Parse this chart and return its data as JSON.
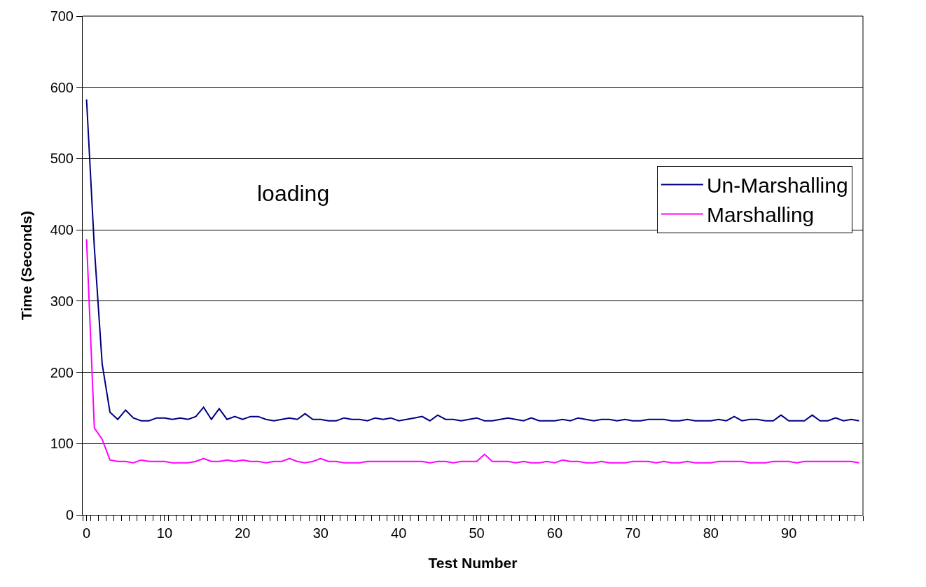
{
  "chart_data": {
    "type": "line",
    "xlabel": "Test Number",
    "ylabel": "Time (Seconds)",
    "annotations": [
      "loading"
    ],
    "x": [
      0,
      1,
      2,
      3,
      4,
      5,
      6,
      7,
      8,
      9,
      10,
      11,
      12,
      13,
      14,
      15,
      16,
      17,
      18,
      19,
      20,
      21,
      22,
      23,
      24,
      25,
      26,
      27,
      28,
      29,
      30,
      31,
      32,
      33,
      34,
      35,
      36,
      37,
      38,
      39,
      40,
      41,
      42,
      43,
      44,
      45,
      46,
      47,
      48,
      49,
      50,
      51,
      52,
      53,
      54,
      55,
      56,
      57,
      58,
      59,
      60,
      61,
      62,
      63,
      64,
      65,
      66,
      67,
      68,
      69,
      70,
      71,
      72,
      73,
      74,
      75,
      76,
      77,
      78,
      79,
      80,
      81,
      82,
      83,
      84,
      85,
      86,
      87,
      88,
      89,
      90,
      91,
      92,
      93,
      94,
      95,
      96,
      97,
      98,
      99
    ],
    "series": [
      {
        "name": "Un-Marshalling",
        "color": "#000080",
        "values": [
          583,
          375,
          212,
          144,
          134,
          147,
          136,
          132,
          132,
          136,
          136,
          134,
          136,
          134,
          138,
          151,
          134,
          149,
          134,
          138,
          134,
          138,
          138,
          134,
          132,
          134,
          136,
          134,
          142,
          134,
          134,
          132,
          132,
          136,
          134,
          134,
          132,
          136,
          134,
          136,
          132,
          134,
          136,
          138,
          132,
          140,
          134,
          134,
          132,
          134,
          136,
          132,
          132,
          134,
          136,
          134,
          132,
          136,
          132,
          132,
          132,
          134,
          132,
          136,
          134,
          132,
          134,
          134,
          132,
          134,
          132,
          132,
          134,
          134,
          134,
          132,
          132,
          134,
          132,
          132,
          132,
          134,
          132,
          138,
          132,
          134,
          134,
          132,
          132,
          140,
          132,
          132,
          132,
          140,
          132,
          132,
          136,
          132,
          134,
          132
        ]
      },
      {
        "name": "Marshalling",
        "color": "#ff00ff",
        "values": [
          387,
          122,
          106,
          77,
          75,
          75,
          73,
          77,
          75,
          75,
          75,
          73,
          73,
          73,
          75,
          79,
          75,
          75,
          77,
          75,
          77,
          75,
          75,
          73,
          75,
          75,
          79,
          75,
          73,
          75,
          79,
          75,
          75,
          73,
          73,
          73,
          75,
          75,
          75,
          75,
          75,
          75,
          75,
          75,
          73,
          75,
          75,
          73,
          75,
          75,
          75,
          85,
          75,
          75,
          75,
          73,
          75,
          73,
          73,
          75,
          73,
          77,
          75,
          75,
          73,
          73,
          75,
          73,
          73,
          73,
          75,
          75,
          75,
          73,
          75,
          73,
          73,
          75,
          73,
          73,
          73,
          75,
          75,
          75,
          75,
          73,
          73,
          73,
          75,
          75,
          75,
          73,
          75,
          75,
          75,
          75,
          75,
          75,
          75,
          73
        ]
      }
    ],
    "xlim": [
      -0.5,
      99.5
    ],
    "xticks": [
      0,
      10,
      20,
      30,
      40,
      50,
      60,
      70,
      80,
      90
    ],
    "ylim": [
      0,
      700
    ],
    "yticks": [
      0,
      100,
      200,
      300,
      400,
      500,
      600,
      700
    ],
    "grid": "y",
    "legend": "right",
    "marker": "none",
    "line_style": "solid"
  }
}
